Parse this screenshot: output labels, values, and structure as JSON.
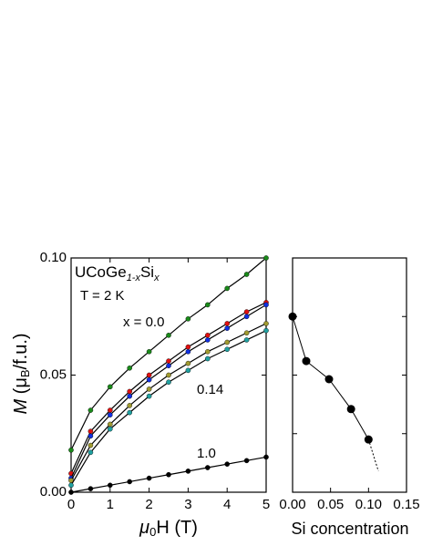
{
  "chart_data": [
    {
      "type": "scatter",
      "x_label": {
        "mu": "μ",
        "sub": "0",
        "rest": "H (T)"
      },
      "y_label": {
        "main": "M",
        "open": " (μ",
        "sub": "B",
        "close": "/f.u.)"
      },
      "compound": {
        "base1": "UCoGe",
        "sub1": "1-x",
        "base2": "Si",
        "sub2": "x"
      },
      "annotations": [
        "T = 2 K",
        "x = 0.0",
        "0.14",
        "1.0"
      ],
      "xlim": [
        0,
        5
      ],
      "xticks": [
        0,
        1,
        2,
        3,
        4,
        5
      ],
      "ylim": [
        0,
        0.1
      ],
      "yticks": [
        {
          "value": 0,
          "label": "0.00"
        },
        {
          "value": 0.05,
          "label": "0.05"
        },
        {
          "value": 0.1,
          "label": "0.10"
        }
      ],
      "x": [
        0,
        0.5,
        1,
        1.5,
        2,
        2.5,
        3,
        3.5,
        4,
        4.5,
        5
      ],
      "series": [
        {
          "color": "#1a8a1a",
          "values": [
            0.018,
            0.035,
            0.045,
            0.053,
            0.06,
            0.067,
            0.074,
            0.08,
            0.087,
            0.093,
            0.1
          ]
        },
        {
          "color": "#e01010",
          "values": [
            0.008,
            0.026,
            0.035,
            0.043,
            0.05,
            0.056,
            0.062,
            0.067,
            0.072,
            0.077,
            0.081
          ]
        },
        {
          "color": "#1030e0",
          "values": [
            0.006,
            0.024,
            0.033,
            0.041,
            0.048,
            0.054,
            0.06,
            0.065,
            0.07,
            0.075,
            0.08
          ]
        },
        {
          "color": "#a09a30",
          "values": [
            0.005,
            0.02,
            0.029,
            0.037,
            0.044,
            0.05,
            0.055,
            0.06,
            0.064,
            0.068,
            0.072
          ]
        },
        {
          "color": "#20a0a0",
          "values": [
            0.003,
            0.017,
            0.027,
            0.034,
            0.041,
            0.047,
            0.052,
            0.057,
            0.061,
            0.065,
            0.069
          ]
        },
        {
          "color": "#000000",
          "values": [
            0,
            0.0015,
            0.003,
            0.0045,
            0.006,
            0.0075,
            0.009,
            0.0105,
            0.012,
            0.0135,
            0.015
          ]
        }
      ]
    },
    {
      "type": "line",
      "x_label": "Si concentration",
      "xlim": [
        0,
        0.15
      ],
      "xticks": [
        {
          "value": 0,
          "label": "0.00"
        },
        {
          "value": 0.05,
          "label": "0.05"
        },
        {
          "value": 0.1,
          "label": "0.10"
        },
        {
          "value": 0.15,
          "label": "0.15"
        }
      ],
      "ylim": [
        0,
        4
      ],
      "yticks": [
        1,
        2,
        3
      ],
      "x": [
        0,
        0.018,
        0.048,
        0.077,
        0.1
      ],
      "values": [
        3,
        2.24,
        1.93,
        1.42,
        0.9
      ],
      "color": "#000000",
      "extrapolation": {
        "x": [
          0.1,
          0.113
        ],
        "values": [
          0.9,
          0.36
        ]
      }
    }
  ]
}
